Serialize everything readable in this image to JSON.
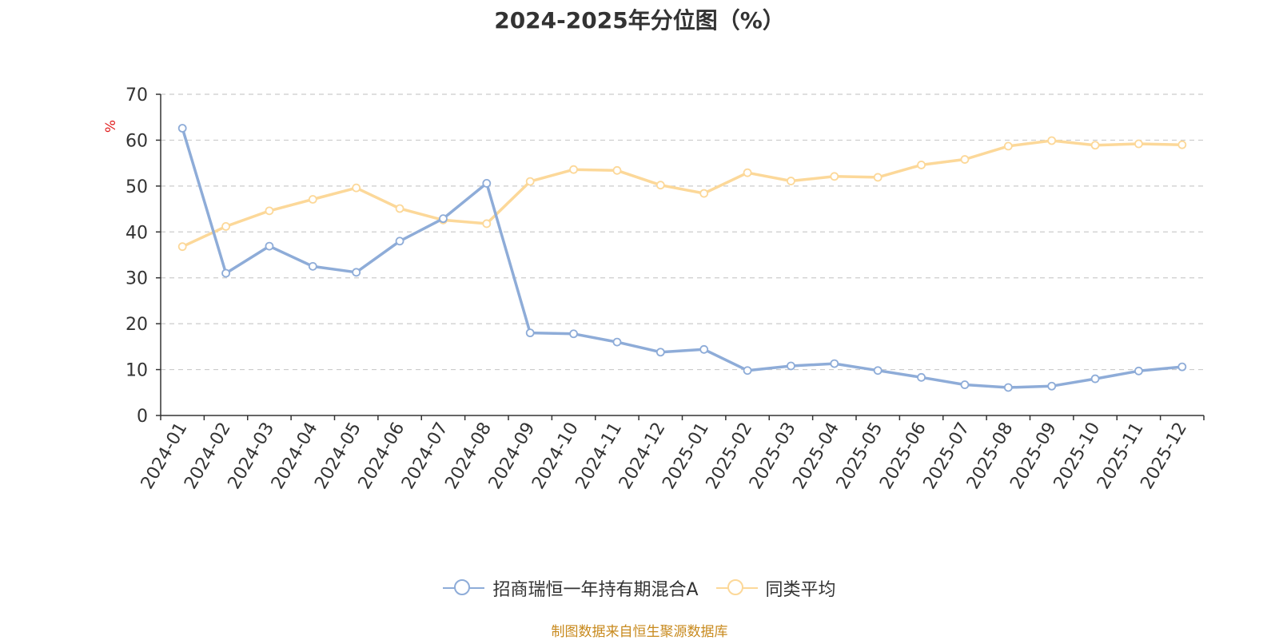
{
  "title": "2024-2025年分位图（%）",
  "source": "制图数据来自恒生聚源数据库",
  "colors": {
    "series1": "#8eacd8",
    "series2": "#fcd899",
    "ylabel": "#e02020",
    "axis": "#333333",
    "grid": "#cccccc"
  },
  "chart_data": {
    "type": "line",
    "title": "2024-2025年分位图（%）",
    "ylabel": "%",
    "ylim": [
      0,
      70
    ],
    "yticks": [
      0,
      10,
      20,
      30,
      40,
      50,
      60,
      70
    ],
    "grid": true,
    "legend_position": "bottom-center",
    "categories": [
      "2024-01",
      "2024-02",
      "2024-03",
      "2024-04",
      "2024-05",
      "2024-06",
      "2024-07",
      "2024-08",
      "2024-09",
      "2024-10",
      "2024-11",
      "2024-12",
      "2025-01",
      "2025-02",
      "2025-03",
      "2025-04",
      "2025-05",
      "2025-06",
      "2025-07",
      "2025-08",
      "2025-09",
      "2025-10",
      "2025-11",
      "2025-12"
    ],
    "series": [
      {
        "name": "招商瑞恒一年持有期混合A",
        "values": [
          62.6,
          31.0,
          36.9,
          32.5,
          31.2,
          38.0,
          42.9,
          50.6,
          18.0,
          17.8,
          16.0,
          13.8,
          14.4,
          9.8,
          10.8,
          11.3,
          9.8,
          8.3,
          6.7,
          6.1,
          6.4,
          8.0,
          9.7,
          10.6
        ]
      },
      {
        "name": "同类平均",
        "values": [
          36.8,
          41.2,
          44.6,
          47.1,
          49.6,
          45.1,
          42.6,
          41.8,
          51.0,
          53.6,
          53.4,
          50.2,
          48.4,
          52.9,
          51.1,
          52.1,
          51.9,
          54.6,
          55.8,
          58.7,
          59.9,
          58.9,
          59.2,
          59.0
        ]
      }
    ]
  }
}
